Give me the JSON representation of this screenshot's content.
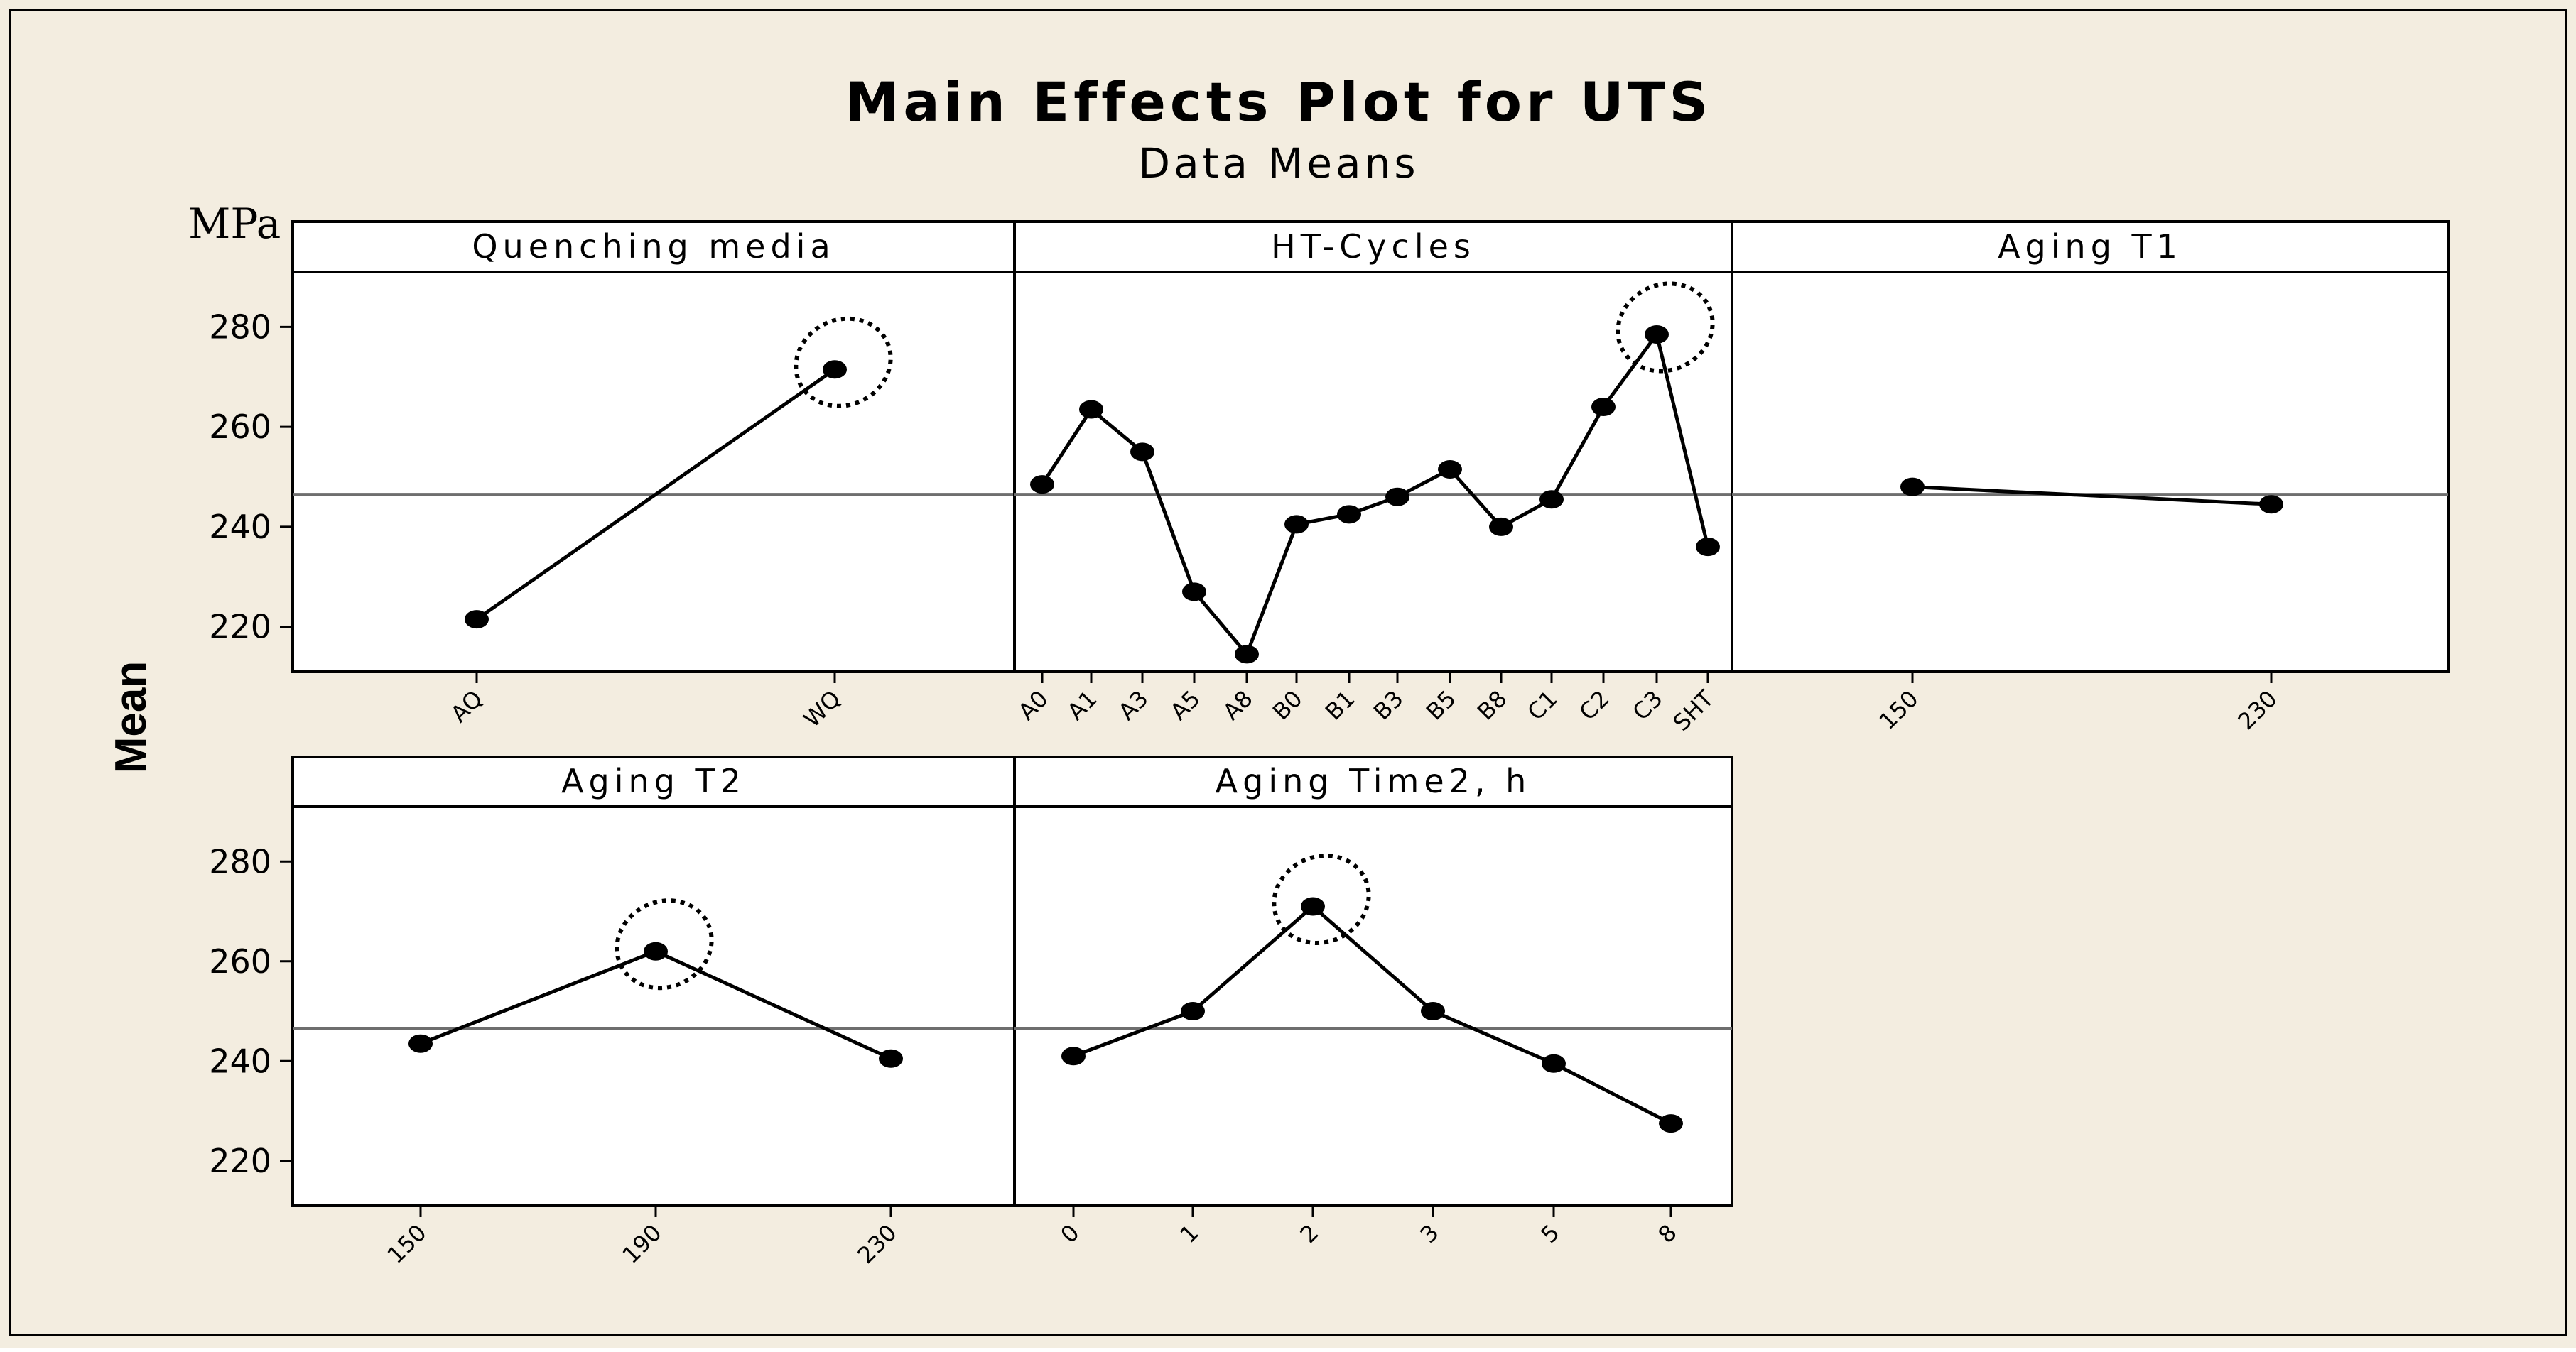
{
  "chart_data": {
    "type": "line",
    "title": "Main Effects Plot for UTS",
    "subtitle": "Data Means",
    "ylabel": "Mean",
    "y_unit": "MPa",
    "ylim": [
      211,
      291
    ],
    "y_ticks": [
      220,
      240,
      260,
      280
    ],
    "reference_line": 246.5,
    "grid": false,
    "colors": {
      "background": "#f3ede0",
      "panel": "#ffffff",
      "line": "#000000",
      "reference_line": "#6e6e6e"
    },
    "panels": [
      {
        "name": "Quenching media",
        "categories": [
          "AQ",
          "WQ"
        ],
        "values": [
          221.5,
          271.5
        ],
        "highlighted": "WQ"
      },
      {
        "name": "HT-Cycles",
        "categories": [
          "A0",
          "A1",
          "A3",
          "A5",
          "A8",
          "B0",
          "B1",
          "B3",
          "B5",
          "B8",
          "C1",
          "C2",
          "C3",
          "SHT"
        ],
        "values": [
          248.5,
          263.5,
          255,
          227,
          214.5,
          240.5,
          242.5,
          246,
          251.5,
          240,
          245.5,
          264,
          278.5,
          236
        ],
        "highlighted": "C3"
      },
      {
        "name": "Aging T1",
        "categories": [
          "150",
          "230"
        ],
        "values": [
          248,
          244.5
        ],
        "highlighted": null
      },
      {
        "name": "Aging T2",
        "categories": [
          "150",
          "190",
          "230"
        ],
        "values": [
          243.5,
          262,
          240.5
        ],
        "highlighted": "190"
      },
      {
        "name": "Aging Time2, h",
        "categories": [
          "0",
          "1",
          "2",
          "3",
          "5",
          "8"
        ],
        "values": [
          241,
          250,
          271,
          250,
          239.5,
          227.5
        ],
        "highlighted": "2"
      }
    ]
  }
}
